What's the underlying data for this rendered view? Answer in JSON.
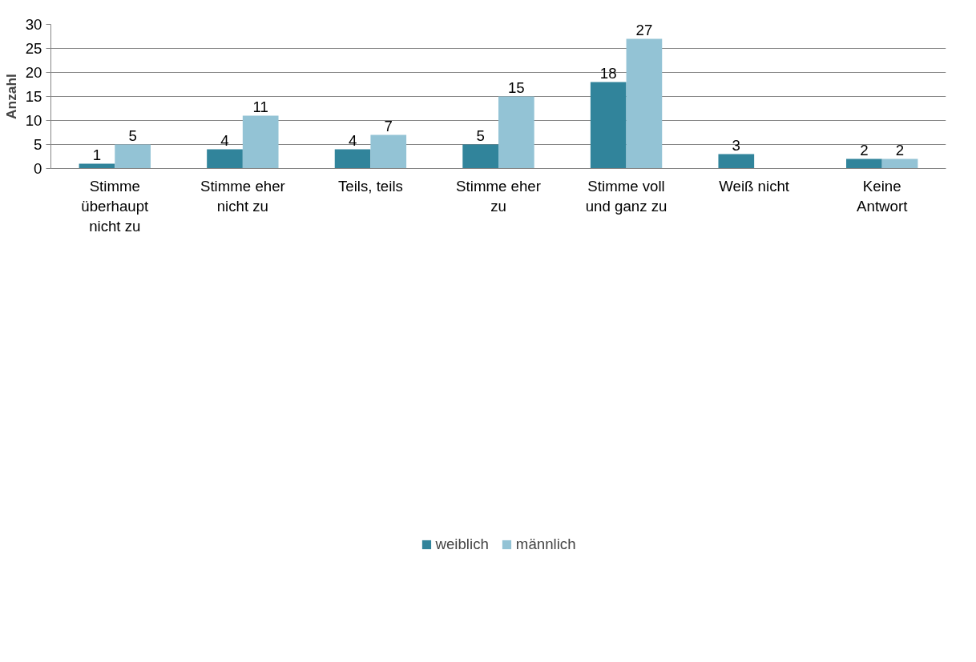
{
  "chart_data": {
    "type": "bar",
    "ylabel": "Anzahl",
    "categories": [
      "Stimme überhaupt nicht zu",
      "Stimme eher nicht zu",
      "Teils, teils",
      "Stimme eher zu",
      "Stimme voll und ganz zu",
      "Weiß nicht",
      "Keine Antwort"
    ],
    "series": [
      {
        "name": "weiblich",
        "color": "#31849b",
        "values": [
          1,
          4,
          4,
          5,
          18,
          3,
          2
        ]
      },
      {
        "name": "männlich",
        "color": "#93c3d5",
        "values": [
          5,
          11,
          7,
          15,
          27,
          null,
          2
        ]
      }
    ],
    "ylim": [
      0,
      30
    ],
    "yticks": [
      0,
      5,
      10,
      15,
      20,
      25,
      30
    ],
    "grid": "y",
    "legend": "bottom",
    "data_labels": true
  }
}
